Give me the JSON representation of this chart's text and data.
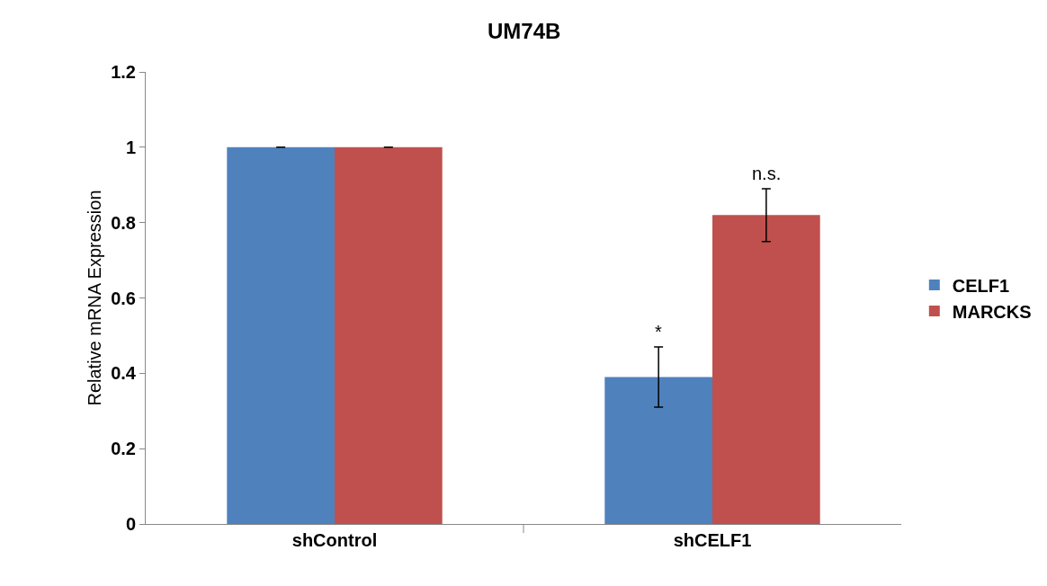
{
  "chart_data": {
    "type": "bar",
    "title": "UM74B",
    "ylabel": "Relative mRNA Expression",
    "categories": [
      "shControl",
      "shCELF1"
    ],
    "series": [
      {
        "name": "CELF1",
        "color": "#4f81bd",
        "values": [
          1,
          0.39
        ],
        "errors": [
          0,
          0.08
        ]
      },
      {
        "name": "MARCKS",
        "color": "#c0504d",
        "values": [
          1,
          0.82
        ],
        "errors": [
          0,
          0.07
        ]
      }
    ],
    "ylim": [
      0,
      1.2
    ],
    "yticks": [
      0,
      0.2,
      0.4,
      0.6,
      0.8,
      1,
      1.2
    ],
    "grid": false,
    "legend": "right",
    "annotations": [
      {
        "text": "*",
        "x": "shCELF1",
        "y": 0.47
      },
      "n.s."
    ]
  }
}
